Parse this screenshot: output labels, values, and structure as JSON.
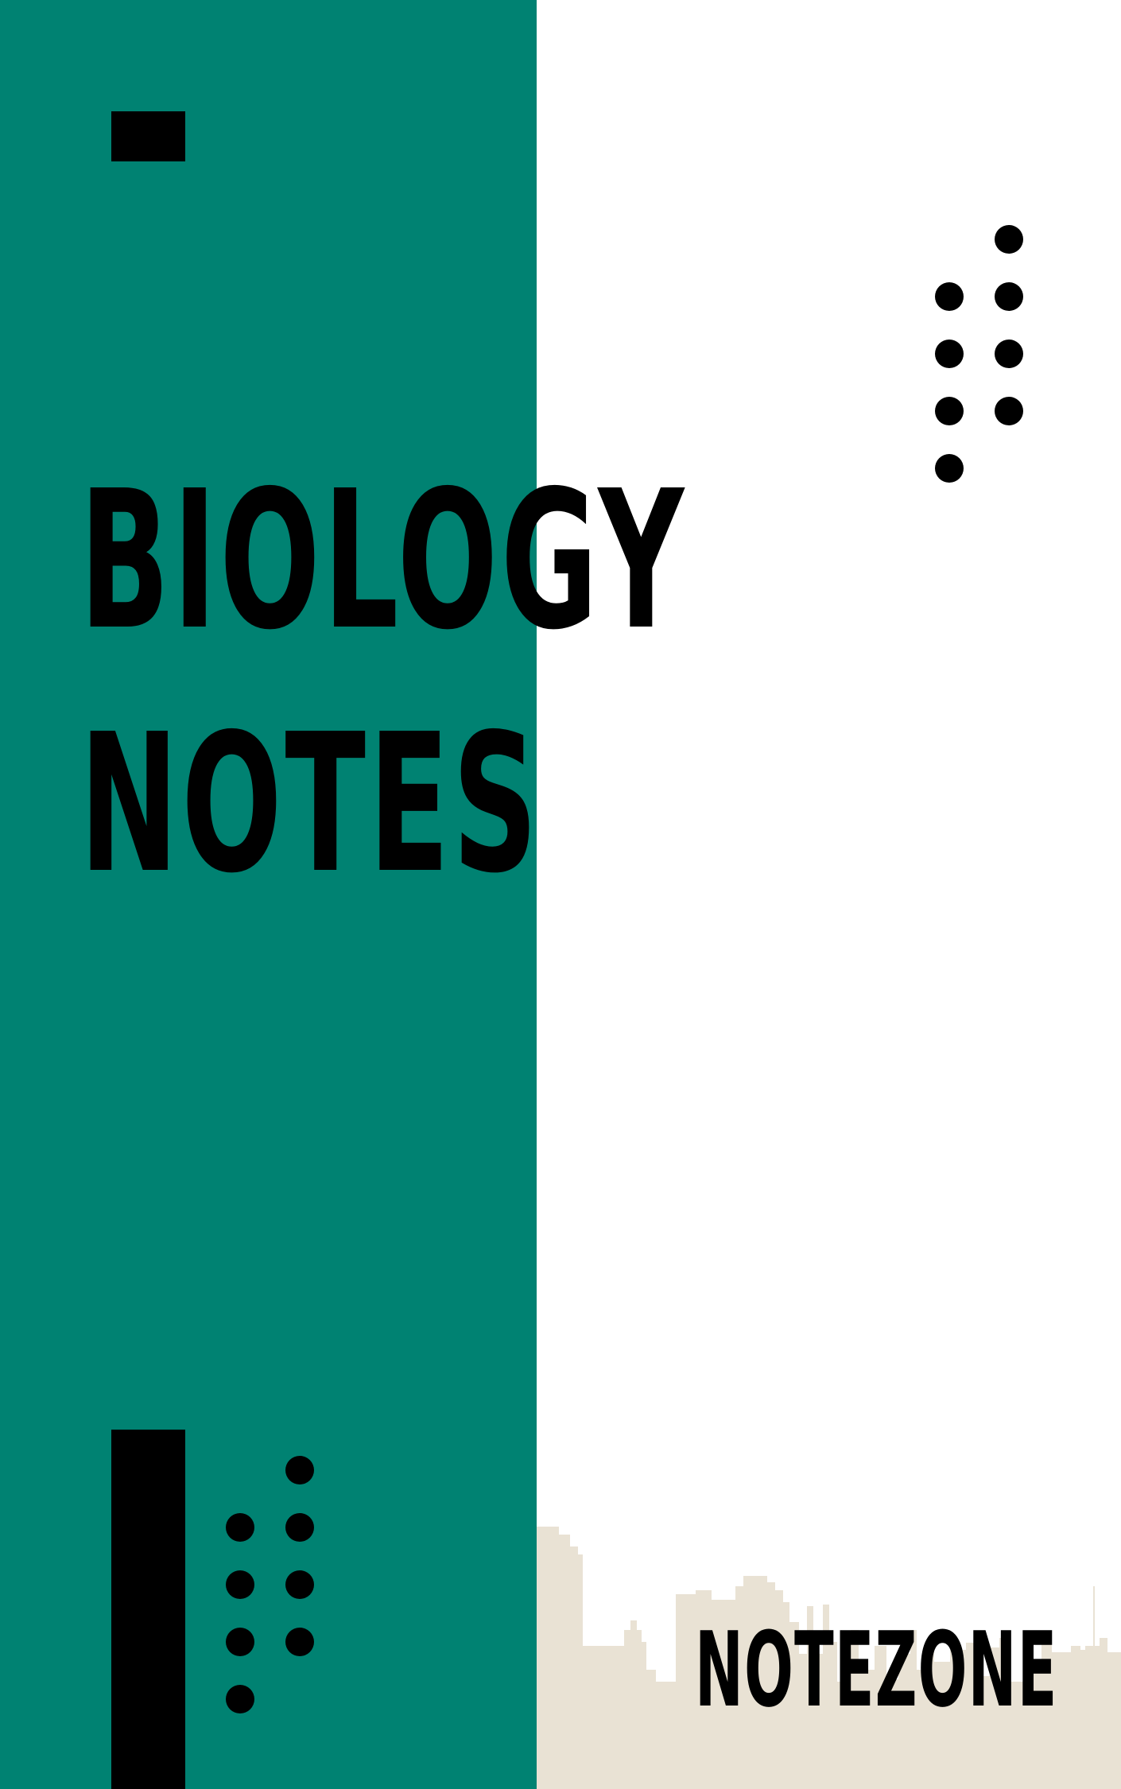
{
  "cover": {
    "title_line1": "BIOLOGY",
    "title_line2": "NOTES",
    "brand": "NOTEZONE"
  },
  "colors": {
    "panel": "#008272",
    "background": "#ffffff",
    "ink": "#000000",
    "skyline": "#e9e2d4"
  },
  "decorations": {
    "skyline_icon": "city-skyline-silhouette",
    "dot_grids": 2,
    "black_blocks": 2
  }
}
